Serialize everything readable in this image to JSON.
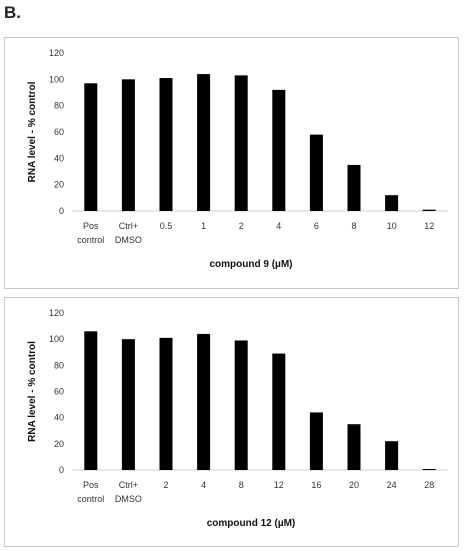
{
  "panel_label": "B.",
  "chart_data": [
    {
      "type": "bar",
      "ylabel": "RNA level - % control",
      "xlabel": "compound 9 (µM)",
      "ylim": [
        0,
        120
      ],
      "yticks": [
        0,
        20,
        40,
        60,
        80,
        100,
        120
      ],
      "grid": false,
      "categories": [
        [
          "Pos",
          "control"
        ],
        [
          "Ctrl+",
          "DMSO"
        ],
        [
          "0.5"
        ],
        [
          "1"
        ],
        [
          "2"
        ],
        [
          "4"
        ],
        [
          "6"
        ],
        [
          "8"
        ],
        [
          "10"
        ],
        [
          "12"
        ]
      ],
      "values": [
        97,
        100,
        101,
        104,
        103,
        92,
        58,
        35,
        12,
        1
      ],
      "bar_color": "#000000"
    },
    {
      "type": "bar",
      "ylabel": "RNA level - % control",
      "xlabel": "compound 12 (µM)",
      "ylim": [
        0,
        120
      ],
      "yticks": [
        0,
        20,
        40,
        60,
        80,
        100,
        120
      ],
      "grid": false,
      "categories": [
        [
          "Pos",
          "control"
        ],
        [
          "Ctrl+",
          "DMSO"
        ],
        [
          "2"
        ],
        [
          "4"
        ],
        [
          "8"
        ],
        [
          "12"
        ],
        [
          "16"
        ],
        [
          "20"
        ],
        [
          "24"
        ],
        [
          "28"
        ]
      ],
      "values": [
        106,
        100,
        101,
        104,
        99,
        89,
        44,
        35,
        22,
        0
      ],
      "bar_color": "#000000"
    }
  ]
}
